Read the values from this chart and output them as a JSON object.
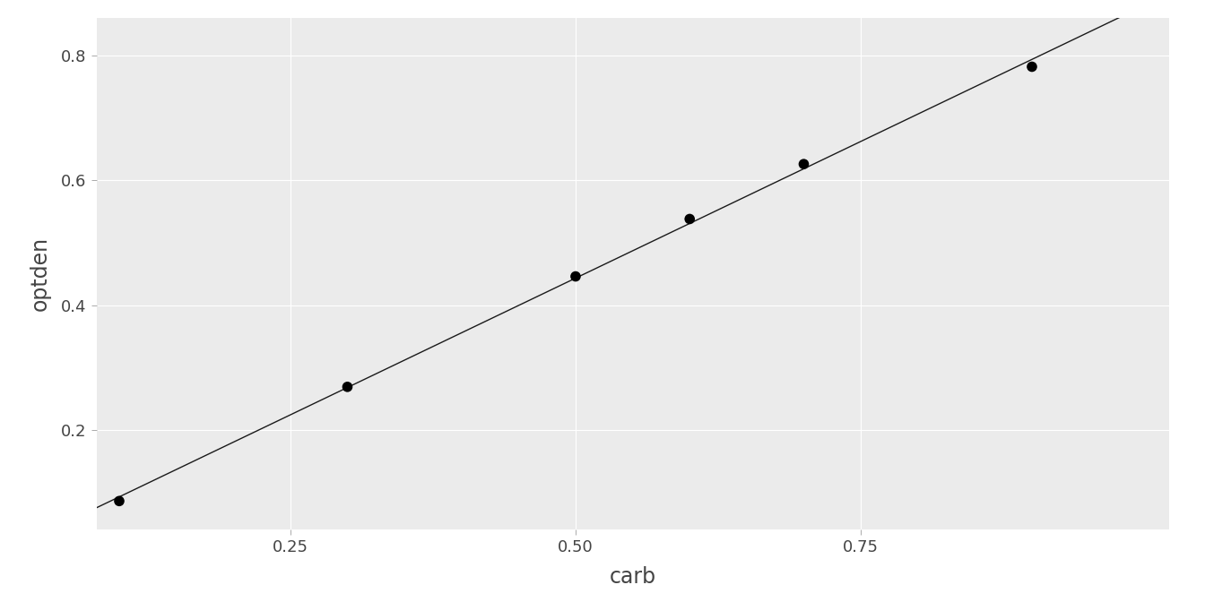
{
  "carb": [
    0.1,
    0.3,
    0.5,
    0.6,
    0.7,
    0.9
  ],
  "optden": [
    0.086,
    0.269,
    0.446,
    0.538,
    0.626,
    0.782
  ],
  "xlabel": "carb",
  "ylabel": "optden",
  "xlim": [
    0.08,
    1.02
  ],
  "ylim": [
    0.04,
    0.86
  ],
  "xticks": [
    0.25,
    0.5,
    0.75
  ],
  "yticks": [
    0.2,
    0.4,
    0.6,
    0.8
  ],
  "figure_bg": "#FFFFFF",
  "panel_bg": "#EBEBEB",
  "grid_color": "#FFFFFF",
  "point_color": "#000000",
  "line_color": "#1A1A1A",
  "point_size": 20,
  "line_width": 1.0,
  "axis_label_fontsize": 17,
  "tick_label_fontsize": 13,
  "font_color": "#444444"
}
